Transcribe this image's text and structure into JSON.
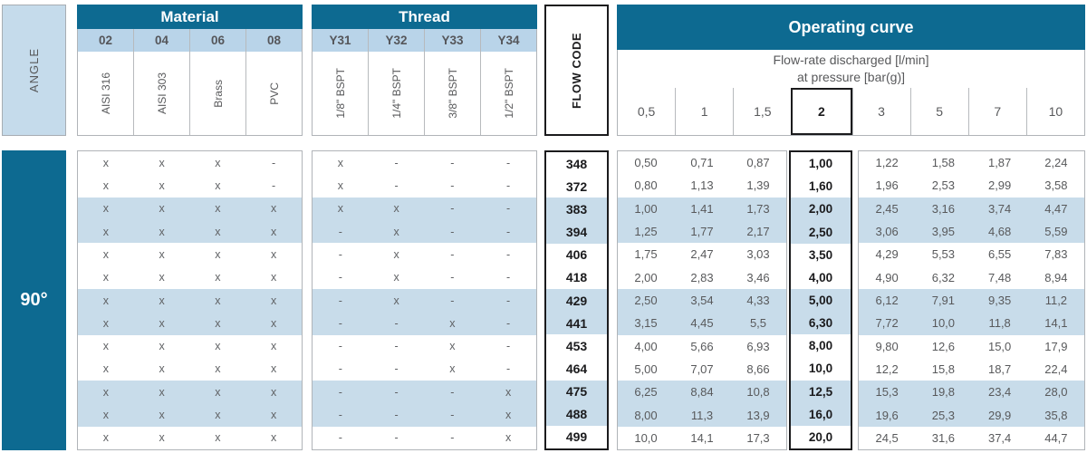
{
  "angle": {
    "header_label": "ANGLE",
    "value": "90°"
  },
  "material": {
    "title": "Material",
    "codes": [
      "02",
      "04",
      "06",
      "08"
    ],
    "names": [
      "AISI 316",
      "AISI 303",
      "Brass",
      "PVC"
    ]
  },
  "thread": {
    "title": "Thread",
    "codes": [
      "Y31",
      "Y32",
      "Y33",
      "Y34"
    ],
    "names": [
      "1/8\" BSPT",
      "1/4\" BSPT",
      "3/8\" BSPT",
      "1/2\" BSPT"
    ]
  },
  "flow_code": {
    "title": "FLOW CODE"
  },
  "operating": {
    "title": "Operating curve",
    "subtitle_line1": "Flow-rate discharged [l/min]",
    "subtitle_line2": "at pressure [bar(g)]",
    "pressures": [
      "0,5",
      "1",
      "1,5",
      "2",
      "3",
      "5",
      "7",
      "10"
    ],
    "highlighted_pressure": "2"
  },
  "colors": {
    "header_dark": "#0d6a91",
    "header_light": "#b9d4e9",
    "row_stripe": "#c8dcea",
    "angle_box": "#c5dbeb",
    "highlight_border": "#1b1b1d",
    "text_gray": "#58595b"
  },
  "rows": [
    {
      "material": [
        "x",
        "x",
        "x",
        "-"
      ],
      "thread": [
        "x",
        "-",
        "-",
        "-"
      ],
      "flow_code": "348",
      "flow_rates": [
        "0,50",
        "0,71",
        "0,87",
        "1,00",
        "1,22",
        "1,58",
        "1,87",
        "2,24"
      ]
    },
    {
      "material": [
        "x",
        "x",
        "x",
        "-"
      ],
      "thread": [
        "x",
        "-",
        "-",
        "-"
      ],
      "flow_code": "372",
      "flow_rates": [
        "0,80",
        "1,13",
        "1,39",
        "1,60",
        "1,96",
        "2,53",
        "2,99",
        "3,58"
      ]
    },
    {
      "material": [
        "x",
        "x",
        "x",
        "x"
      ],
      "thread": [
        "x",
        "x",
        "-",
        "-"
      ],
      "flow_code": "383",
      "flow_rates": [
        "1,00",
        "1,41",
        "1,73",
        "2,00",
        "2,45",
        "3,16",
        "3,74",
        "4,47"
      ]
    },
    {
      "material": [
        "x",
        "x",
        "x",
        "x"
      ],
      "thread": [
        "-",
        "x",
        "-",
        "-"
      ],
      "flow_code": "394",
      "flow_rates": [
        "1,25",
        "1,77",
        "2,17",
        "2,50",
        "3,06",
        "3,95",
        "4,68",
        "5,59"
      ]
    },
    {
      "material": [
        "x",
        "x",
        "x",
        "x"
      ],
      "thread": [
        "-",
        "x",
        "-",
        "-"
      ],
      "flow_code": "406",
      "flow_rates": [
        "1,75",
        "2,47",
        "3,03",
        "3,50",
        "4,29",
        "5,53",
        "6,55",
        "7,83"
      ]
    },
    {
      "material": [
        "x",
        "x",
        "x",
        "x"
      ],
      "thread": [
        "-",
        "x",
        "-",
        "-"
      ],
      "flow_code": "418",
      "flow_rates": [
        "2,00",
        "2,83",
        "3,46",
        "4,00",
        "4,90",
        "6,32",
        "7,48",
        "8,94"
      ]
    },
    {
      "material": [
        "x",
        "x",
        "x",
        "x"
      ],
      "thread": [
        "-",
        "x",
        "-",
        "-"
      ],
      "flow_code": "429",
      "flow_rates": [
        "2,50",
        "3,54",
        "4,33",
        "5,00",
        "6,12",
        "7,91",
        "9,35",
        "11,2"
      ]
    },
    {
      "material": [
        "x",
        "x",
        "x",
        "x"
      ],
      "thread": [
        "-",
        "-",
        "x",
        "-"
      ],
      "flow_code": "441",
      "flow_rates": [
        "3,15",
        "4,45",
        "5,5",
        "6,30",
        "7,72",
        "10,0",
        "11,8",
        "14,1"
      ]
    },
    {
      "material": [
        "x",
        "x",
        "x",
        "x"
      ],
      "thread": [
        "-",
        "-",
        "x",
        "-"
      ],
      "flow_code": "453",
      "flow_rates": [
        "4,00",
        "5,66",
        "6,93",
        "8,00",
        "9,80",
        "12,6",
        "15,0",
        "17,9"
      ]
    },
    {
      "material": [
        "x",
        "x",
        "x",
        "x"
      ],
      "thread": [
        "-",
        "-",
        "x",
        "-"
      ],
      "flow_code": "464",
      "flow_rates": [
        "5,00",
        "7,07",
        "8,66",
        "10,0",
        "12,2",
        "15,8",
        "18,7",
        "22,4"
      ]
    },
    {
      "material": [
        "x",
        "x",
        "x",
        "x"
      ],
      "thread": [
        "-",
        "-",
        "-",
        "x"
      ],
      "flow_code": "475",
      "flow_rates": [
        "6,25",
        "8,84",
        "10,8",
        "12,5",
        "15,3",
        "19,8",
        "23,4",
        "28,0"
      ]
    },
    {
      "material": [
        "x",
        "x",
        "x",
        "x"
      ],
      "thread": [
        "-",
        "-",
        "-",
        "x"
      ],
      "flow_code": "488",
      "flow_rates": [
        "8,00",
        "11,3",
        "13,9",
        "16,0",
        "19,6",
        "25,3",
        "29,9",
        "35,8"
      ]
    },
    {
      "material": [
        "x",
        "x",
        "x",
        "x"
      ],
      "thread": [
        "-",
        "-",
        "-",
        "x"
      ],
      "flow_code": "499",
      "flow_rates": [
        "10,0",
        "14,1",
        "17,3",
        "20,0",
        "24,5",
        "31,6",
        "37,4",
        "44,7"
      ]
    }
  ]
}
